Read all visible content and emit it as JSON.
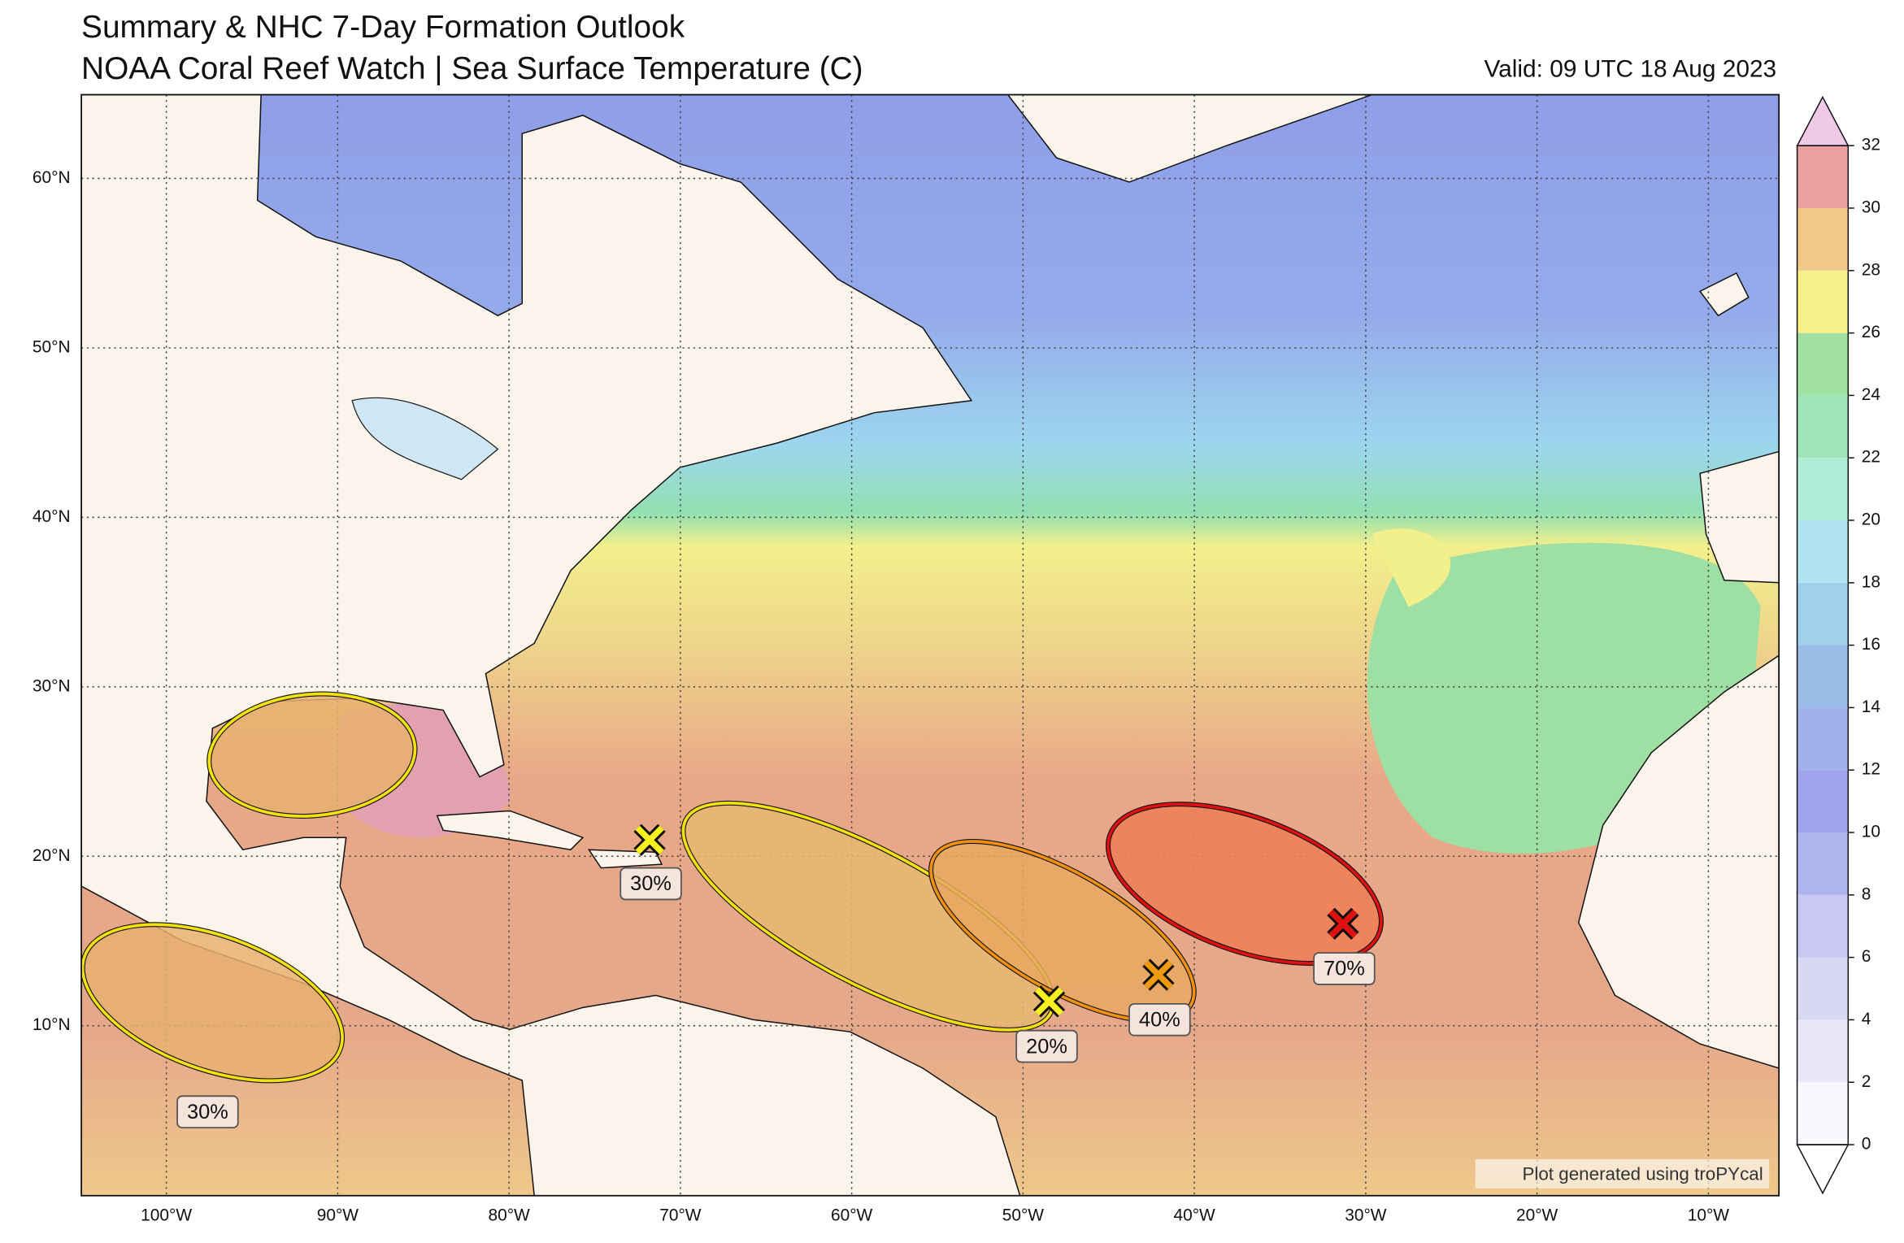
{
  "header": {
    "title": "Summary & NHC 7-Day Formation Outlook",
    "subtitle": "NOAA Coral Reef Watch | Sea Surface Temperature (C)",
    "valid": "Valid: 09 UTC 18 Aug 2023"
  },
  "map": {
    "lat_labels": [
      "60°N",
      "50°N",
      "40°N",
      "30°N",
      "20°N",
      "10°N"
    ],
    "lon_labels": [
      "100°W",
      "90°W",
      "80°W",
      "70°W",
      "60°W",
      "50°W",
      "40°W",
      "30°W",
      "20°W",
      "10°W"
    ],
    "credit": "Plot generated using troPYcal"
  },
  "colorbar": {
    "ticks": [
      0,
      2,
      4,
      6,
      8,
      10,
      12,
      14,
      16,
      18,
      20,
      22,
      24,
      26,
      28,
      30,
      32
    ],
    "colors": [
      "#f8f8ff",
      "#e8e8fa",
      "#d8d8f5",
      "#c8c8f2",
      "#b0b4ee",
      "#9ea4ec",
      "#a0b0ea",
      "#9cbce8",
      "#a0d0ec",
      "#b0e4f0",
      "#b0ecd8",
      "#9ee4b8",
      "#a0e0a0",
      "#f6f08a",
      "#f0c888",
      "#e8a0a0"
    ]
  },
  "outlooks": [
    {
      "probability": "30%"
    },
    {
      "probability": "20%"
    },
    {
      "probability": "40%"
    },
    {
      "probability": "70%"
    },
    {
      "probability": "30%"
    }
  ]
}
